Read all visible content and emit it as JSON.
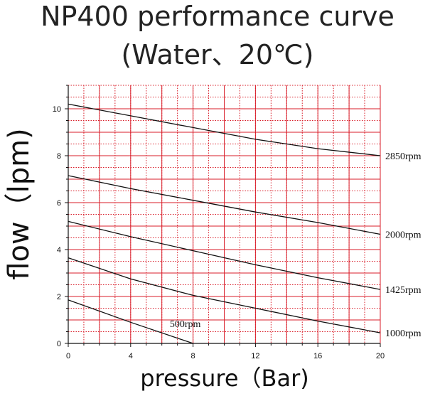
{
  "chart_data": {
    "type": "line",
    "title": "NP400 performance curve",
    "subtitle": "(Water、20℃)",
    "xlabel": "pressure（Bar)",
    "ylabel": "flow（lpm)",
    "xlim": [
      0,
      20
    ],
    "ylim": [
      0,
      11
    ],
    "x_ticks": [
      0,
      4,
      8,
      12,
      16,
      20
    ],
    "y_ticks": [
      0,
      2,
      4,
      6,
      8,
      10
    ],
    "grid": true,
    "grid_color": "#d91e2a",
    "line_color": "#111111",
    "series": [
      {
        "name": "2850rpm",
        "x": [
          0,
          4,
          8,
          12,
          16,
          20
        ],
        "y": [
          10.2,
          9.7,
          9.2,
          8.7,
          8.3,
          8.0
        ]
      },
      {
        "name": "2000rpm",
        "x": [
          0,
          4,
          8,
          12,
          16,
          20
        ],
        "y": [
          7.15,
          6.6,
          6.1,
          5.6,
          5.15,
          4.65
        ]
      },
      {
        "name": "1425rpm",
        "x": [
          0,
          4,
          8,
          12,
          16,
          20
        ],
        "y": [
          5.2,
          4.55,
          3.95,
          3.35,
          2.8,
          2.3
        ]
      },
      {
        "name": "1000rpm",
        "x": [
          0,
          4,
          8,
          12,
          16,
          20
        ],
        "y": [
          3.65,
          2.75,
          2.05,
          1.5,
          0.95,
          0.45
        ]
      },
      {
        "name": "500rpm",
        "x": [
          0,
          4,
          8
        ],
        "y": [
          1.85,
          0.9,
          0.0
        ]
      }
    ]
  }
}
